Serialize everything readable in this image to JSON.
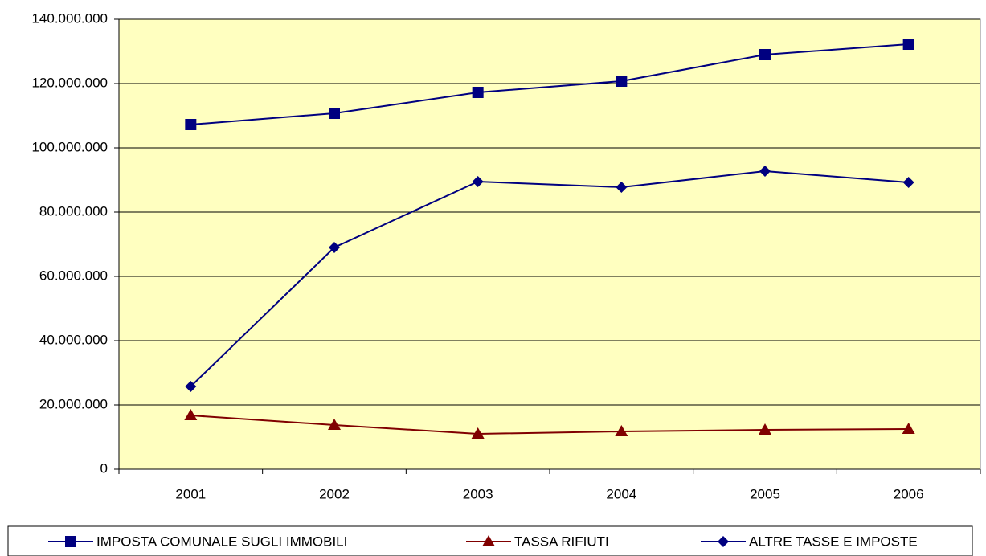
{
  "chart_data": {
    "type": "line",
    "categories": [
      "2001",
      "2002",
      "2003",
      "2004",
      "2005",
      "2006"
    ],
    "series": [
      {
        "name": "IMPOSTA COMUNALE SUGLI IMMOBILI",
        "color": "#000080",
        "marker": "square",
        "values": [
          107250000,
          110750000,
          117250000,
          120750000,
          129000000,
          132250000
        ]
      },
      {
        "name": "TASSA RIFIUTI",
        "color": "#800000",
        "marker": "triangle",
        "values": [
          16750000,
          13750000,
          11000000,
          11750000,
          12250000,
          12500000
        ]
      },
      {
        "name": "ALTRE TASSE E IMPOSTE",
        "color": "#000080",
        "marker": "diamond",
        "values": [
          25750000,
          69000000,
          89500000,
          87750000,
          92750000,
          89250000
        ]
      }
    ],
    "ylim": [
      0,
      140000000
    ],
    "yticks": [
      0,
      {
        "value": 20000000,
        "label": "20.000.000"
      },
      {
        "value": 40000000,
        "label": "40.000.000"
      },
      {
        "value": 60000000,
        "label": "60.000.000"
      },
      {
        "value": 80000000,
        "label": "80.000.000"
      },
      {
        "value": 100000000,
        "label": "100.000.000"
      },
      {
        "value": 120000000,
        "label": "120.000.000"
      },
      {
        "value": 140000000,
        "label": "140.000.000"
      }
    ],
    "grid": true,
    "plot_background": "#ffffc0",
    "legend": "bottom"
  }
}
